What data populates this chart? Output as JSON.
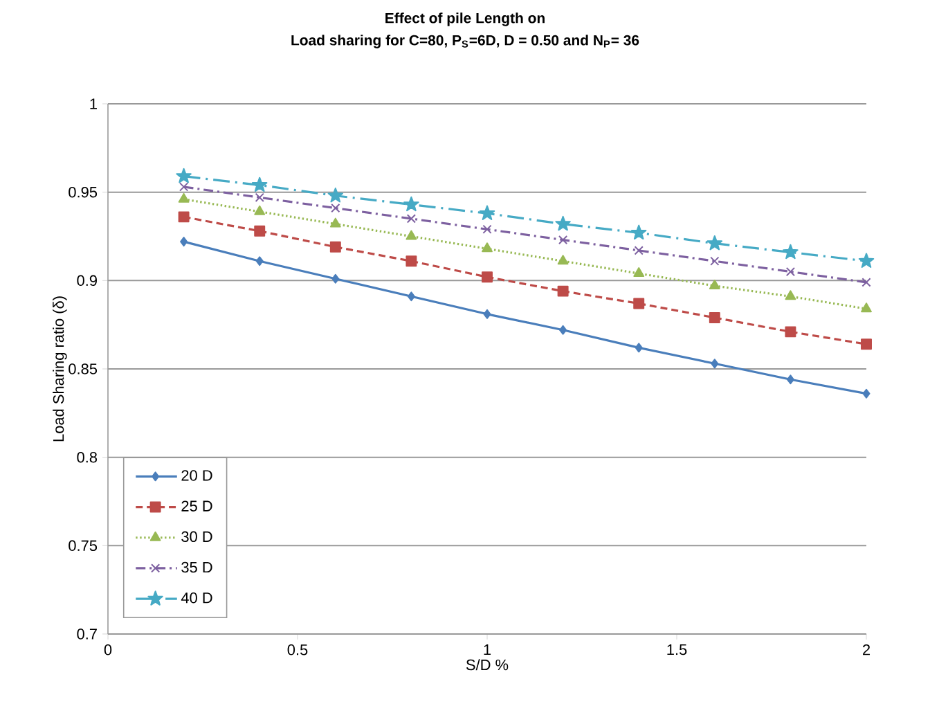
{
  "chart_data": {
    "type": "line",
    "title": "Effect of pile Length on",
    "subtitle": "Load sharing for C=80, P$_{S}$=6D, D = 0.50 and N$_{P}$= 36",
    "xlabel": "S/D %",
    "ylabel": "Load Sharing ratio (δ)",
    "x": [
      0.2,
      0.4,
      0.6,
      0.8,
      1.0,
      1.2,
      1.4,
      1.6,
      1.8,
      2.0
    ],
    "series": [
      {
        "name": "20 D",
        "color": "#4a7ebb",
        "marker": "diamond",
        "line_style": "solid",
        "values": [
          0.922,
          0.911,
          0.901,
          0.891,
          0.881,
          0.872,
          0.862,
          0.853,
          0.844,
          0.836
        ]
      },
      {
        "name": "25 D",
        "color": "#be4b48",
        "marker": "square",
        "line_style": "dashed",
        "values": [
          0.936,
          0.928,
          0.919,
          0.911,
          0.902,
          0.894,
          0.887,
          0.879,
          0.871,
          0.864
        ]
      },
      {
        "name": "30 D",
        "color": "#98b954",
        "marker": "triangle",
        "line_style": "dotted",
        "values": [
          0.946,
          0.939,
          0.932,
          0.925,
          0.918,
          0.911,
          0.904,
          0.897,
          0.891,
          0.884
        ]
      },
      {
        "name": "35 D",
        "color": "#7d60a0",
        "marker": "cross",
        "line_style": "dashdot",
        "values": [
          0.953,
          0.947,
          0.941,
          0.935,
          0.929,
          0.923,
          0.917,
          0.911,
          0.905,
          0.899
        ]
      },
      {
        "name": "40 D",
        "color": "#46aac5",
        "marker": "star",
        "line_style": "longdashdot",
        "values": [
          0.959,
          0.954,
          0.948,
          0.943,
          0.938,
          0.932,
          0.927,
          0.921,
          0.916,
          0.911
        ]
      }
    ],
    "xlim": [
      0,
      2
    ],
    "ylim": [
      0.7,
      1
    ],
    "xticks": [
      0,
      0.5,
      1,
      1.5,
      2
    ],
    "yticks": [
      0.7,
      0.75,
      0.8,
      0.85,
      0.9,
      0.95,
      1
    ],
    "grid": "y",
    "legend": "bottom left"
  }
}
